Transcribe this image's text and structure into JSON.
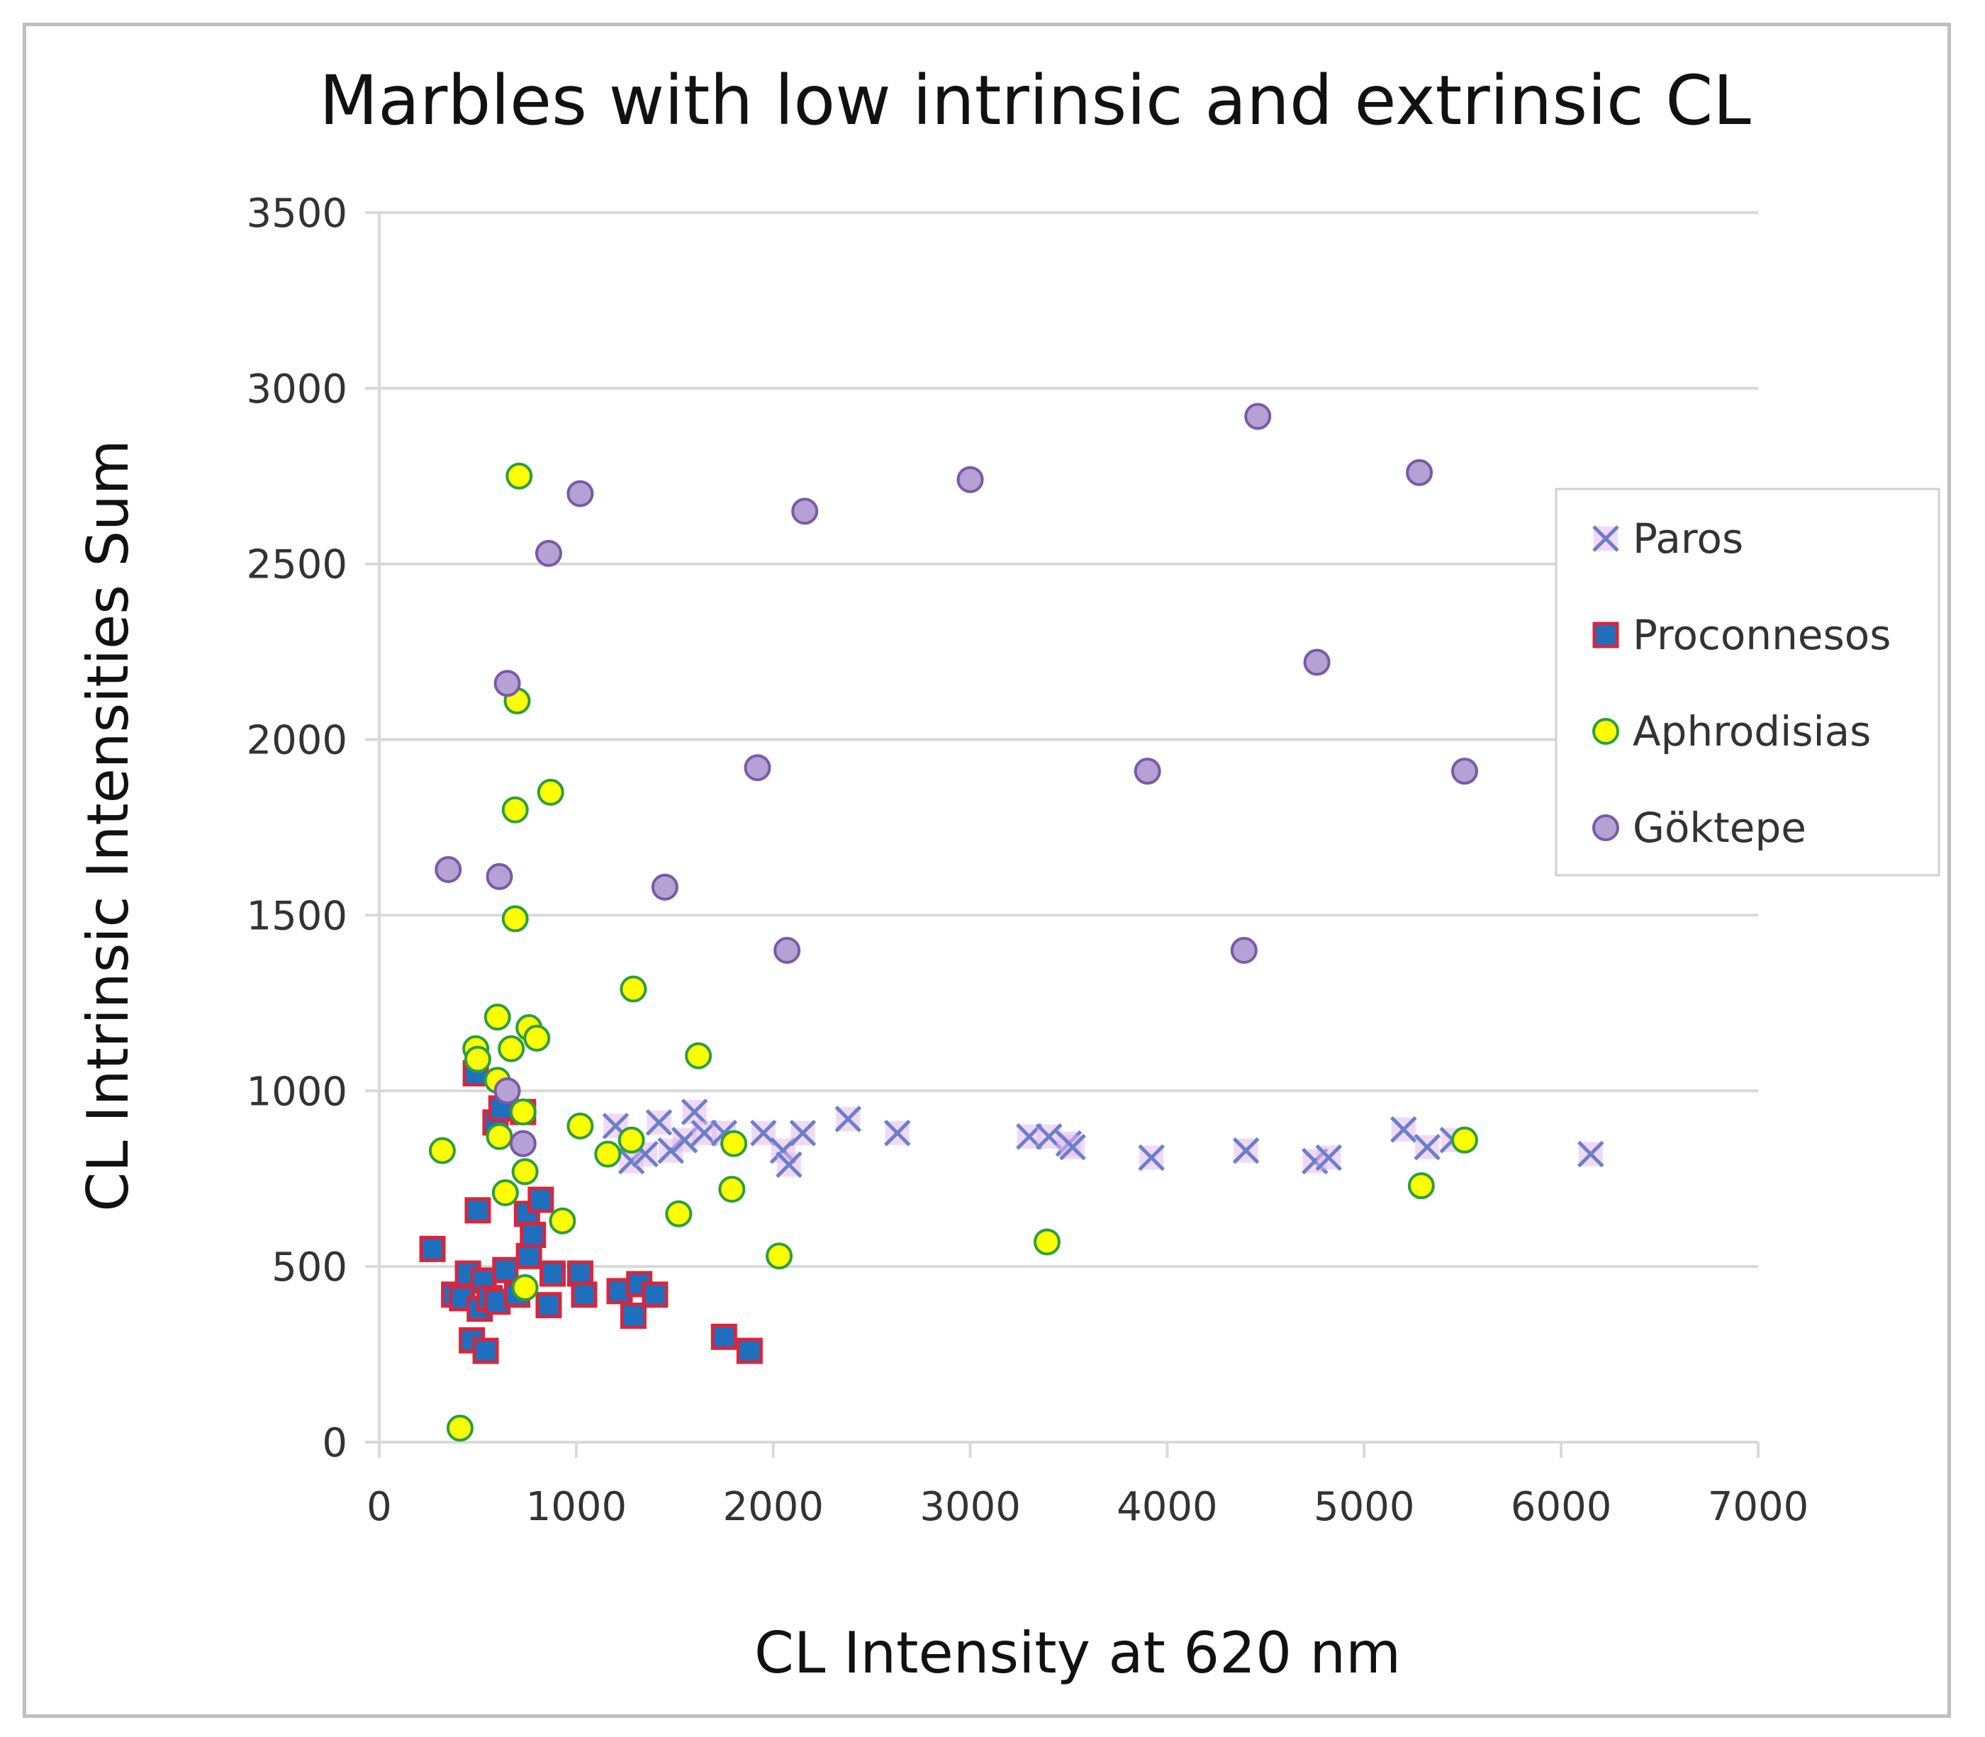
{
  "chart_data": {
    "type": "scatter",
    "title": "Marbles with low intrinsic and extrinsic CL",
    "xlabel": "CL Intensity at 620 nm",
    "ylabel": "CL Intrinsic Intensities Sum",
    "xlim": [
      0,
      7000
    ],
    "ylim": [
      0,
      3500
    ],
    "xticks": [
      "0",
      "1000",
      "2000",
      "3000",
      "4000",
      "5000",
      "6000",
      "7000"
    ],
    "yticks": [
      "0",
      "500",
      "1000",
      "1500",
      "2000",
      "2500",
      "3000",
      "3500"
    ],
    "grid": "horizontal",
    "legend_position": "right",
    "series": [
      {
        "name": "Paros",
        "marker": "x",
        "color": "#6b7fc9",
        "fill": "#e6b8f0",
        "points": [
          [
            1200,
            900
          ],
          [
            1280,
            800
          ],
          [
            1350,
            820
          ],
          [
            1420,
            910
          ],
          [
            1480,
            830
          ],
          [
            1550,
            860
          ],
          [
            1600,
            940
          ],
          [
            1650,
            880
          ],
          [
            1750,
            880
          ],
          [
            1950,
            880
          ],
          [
            2050,
            830
          ],
          [
            2080,
            790
          ],
          [
            2150,
            880
          ],
          [
            2380,
            920
          ],
          [
            2630,
            880
          ],
          [
            3300,
            870
          ],
          [
            3400,
            870
          ],
          [
            3500,
            850
          ],
          [
            3520,
            840
          ],
          [
            3920,
            810
          ],
          [
            4400,
            830
          ],
          [
            4750,
            800
          ],
          [
            4820,
            810
          ],
          [
            5200,
            890
          ],
          [
            5320,
            840
          ],
          [
            5450,
            860
          ],
          [
            6150,
            820
          ]
        ]
      },
      {
        "name": "Proconnesos",
        "marker": "square",
        "color": "#1f6fbf",
        "edge": "#d7263d",
        "points": [
          [
            270,
            550
          ],
          [
            380,
            420
          ],
          [
            420,
            410
          ],
          [
            450,
            480
          ],
          [
            470,
            290
          ],
          [
            490,
            1050
          ],
          [
            500,
            660
          ],
          [
            510,
            380
          ],
          [
            530,
            460
          ],
          [
            540,
            260
          ],
          [
            560,
            410
          ],
          [
            590,
            910
          ],
          [
            600,
            400
          ],
          [
            620,
            950
          ],
          [
            640,
            490
          ],
          [
            700,
            420
          ],
          [
            730,
            940
          ],
          [
            750,
            650
          ],
          [
            760,
            530
          ],
          [
            780,
            590
          ],
          [
            820,
            690
          ],
          [
            860,
            390
          ],
          [
            880,
            480
          ],
          [
            1020,
            480
          ],
          [
            1040,
            420
          ],
          [
            1220,
            430
          ],
          [
            1290,
            360
          ],
          [
            1320,
            450
          ],
          [
            1400,
            420
          ],
          [
            1750,
            300
          ],
          [
            1880,
            260
          ]
        ]
      },
      {
        "name": "Aphrodisias",
        "marker": "circle",
        "color": "#ffff00",
        "edge": "#2e9e3e",
        "points": [
          [
            320,
            830
          ],
          [
            410,
            40
          ],
          [
            490,
            1120
          ],
          [
            500,
            1090
          ],
          [
            600,
            1210
          ],
          [
            600,
            1030
          ],
          [
            610,
            870
          ],
          [
            640,
            710
          ],
          [
            670,
            1120
          ],
          [
            690,
            1490
          ],
          [
            690,
            1800
          ],
          [
            700,
            2110
          ],
          [
            710,
            2750
          ],
          [
            730,
            940
          ],
          [
            740,
            770
          ],
          [
            740,
            440
          ],
          [
            760,
            1180
          ],
          [
            800,
            1150
          ],
          [
            870,
            1850
          ],
          [
            930,
            630
          ],
          [
            1020,
            900
          ],
          [
            1160,
            820
          ],
          [
            1280,
            860
          ],
          [
            1290,
            1290
          ],
          [
            1520,
            650
          ],
          [
            1620,
            1100
          ],
          [
            1790,
            720
          ],
          [
            1800,
            850
          ],
          [
            2030,
            530
          ],
          [
            3390,
            570
          ],
          [
            5290,
            730
          ],
          [
            5510,
            860
          ]
        ]
      },
      {
        "name": "Göktepe",
        "marker": "circle",
        "color": "#b6a1d4",
        "edge": "#7a5aa6",
        "points": [
          [
            350,
            1630
          ],
          [
            610,
            1610
          ],
          [
            650,
            2160
          ],
          [
            650,
            1000
          ],
          [
            730,
            850
          ],
          [
            860,
            2530
          ],
          [
            1020,
            2700
          ],
          [
            1450,
            1580
          ],
          [
            1920,
            1920
          ],
          [
            2070,
            1400
          ],
          [
            2160,
            2650
          ],
          [
            3000,
            2740
          ],
          [
            3900,
            1910
          ],
          [
            4390,
            1400
          ],
          [
            4460,
            2920
          ],
          [
            4760,
            2220
          ],
          [
            5280,
            2760
          ],
          [
            5510,
            1910
          ]
        ]
      }
    ]
  }
}
